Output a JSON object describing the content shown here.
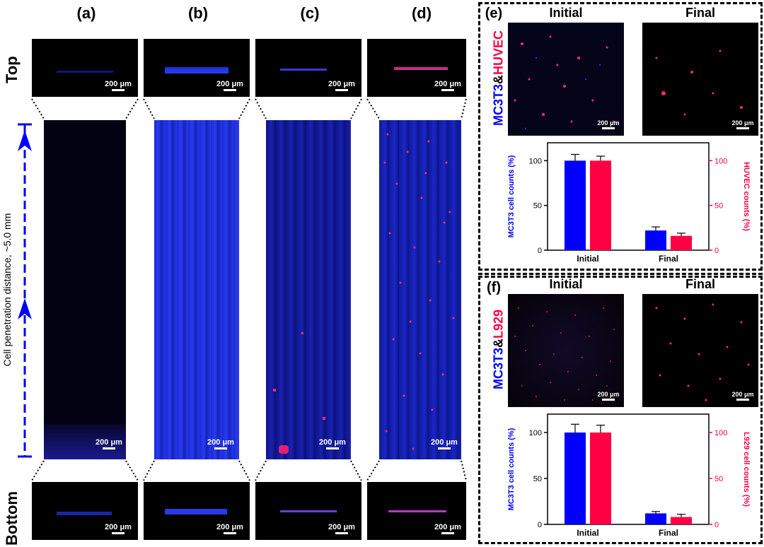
{
  "panels": {
    "labels": [
      "(a)",
      "(b)",
      "(c)",
      "(d)"
    ],
    "row_top": "Top",
    "row_bottom": "Bottom",
    "scalebar": "200 μm",
    "axis_label": "Cell penetration distance, ~5.0 mm"
  },
  "panel_e": {
    "label": "(e)",
    "initial": "Initial",
    "final": "Final",
    "side_blue": "MC3T3",
    "side_amp": "&",
    "side_red": "HUVEC"
  },
  "panel_f": {
    "label": "(f)",
    "initial": "Initial",
    "final": "Final",
    "side_blue": "MC3T3",
    "side_amp": "&",
    "side_red": "L929"
  },
  "colors": {
    "blue": "#0000ff",
    "red": "#ff0044",
    "bg": "#000000"
  },
  "chart_data": [
    {
      "type": "bar",
      "categories": [
        "Initial",
        "Final"
      ],
      "series": [
        {
          "name": "MC3T3",
          "values": [
            100,
            22
          ],
          "errors": [
            7,
            4
          ],
          "color": "#0000ff"
        },
        {
          "name": "HUVEC",
          "values": [
            100,
            16
          ],
          "errors": [
            5,
            3
          ],
          "color": "#ff0044"
        }
      ],
      "ylabel_left": "MC3T3 cell counts (%)",
      "ylabel_right": "HUVEC counts (%)",
      "ylim": [
        0,
        120
      ],
      "yticks": [
        0,
        50,
        100
      ],
      "ytick_labels": [
        "0",
        "50",
        "100"
      ]
    },
    {
      "type": "bar",
      "categories": [
        "Initial",
        "Final"
      ],
      "series": [
        {
          "name": "MC3T3",
          "values": [
            100,
            12
          ],
          "errors": [
            9,
            2
          ],
          "color": "#0000ff"
        },
        {
          "name": "L929",
          "values": [
            100,
            8
          ],
          "errors": [
            8,
            3
          ],
          "color": "#ff0044"
        }
      ],
      "ylabel_left": "MC3T3 cell counts (%)",
      "ylabel_right": "L929 cell counts (%)",
      "ylim": [
        0,
        120
      ],
      "yticks": [
        0,
        50,
        100
      ],
      "ytick_labels": [
        "0",
        "50",
        "100"
      ]
    }
  ]
}
